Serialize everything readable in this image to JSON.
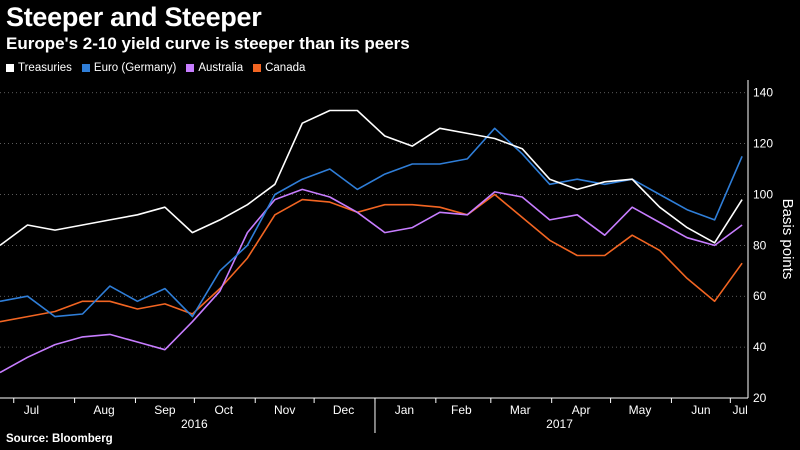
{
  "title": "Steeper and Steeper",
  "subtitle": "Europe's 2-10 yield curve is steeper than its peers",
  "source": "Source: Bloomberg",
  "chart_data": {
    "type": "line",
    "ylabel": "Basis points",
    "ylim": [
      20,
      145
    ],
    "yticks": [
      20,
      40,
      60,
      80,
      100,
      120,
      140
    ],
    "grid": "horizontal dotted",
    "legend": "top-left",
    "months": [
      "Jul",
      "Aug",
      "Sep",
      "Oct",
      "Nov",
      "Dec",
      "Jan",
      "Feb",
      "Mar",
      "Apr",
      "May",
      "Jun",
      "Jul"
    ],
    "years": [
      "2016",
      "2017"
    ],
    "x": [
      "2016-06-24",
      "2016-07-08",
      "2016-07-22",
      "2016-08-05",
      "2016-08-19",
      "2016-09-02",
      "2016-09-16",
      "2016-09-30",
      "2016-10-14",
      "2016-10-28",
      "2016-11-11",
      "2016-11-25",
      "2016-12-09",
      "2016-12-23",
      "2017-01-06",
      "2017-01-20",
      "2017-02-03",
      "2017-02-17",
      "2017-03-03",
      "2017-03-17",
      "2017-03-31",
      "2017-04-14",
      "2017-04-28",
      "2017-05-12",
      "2017-05-26",
      "2017-06-09",
      "2017-06-23",
      "2017-07-07"
    ],
    "series": [
      {
        "name": "Treasuries",
        "color": "#ffffff",
        "values": [
          80,
          88,
          86,
          88,
          90,
          92,
          95,
          85,
          90,
          96,
          104,
          128,
          133,
          133,
          123,
          119,
          126,
          124,
          122,
          118,
          106,
          102,
          105,
          106,
          95,
          87,
          81,
          98
        ]
      },
      {
        "name": "Euro (Germany)",
        "color": "#2f7ed8",
        "values": [
          58,
          60,
          52,
          53,
          64,
          58,
          63,
          52,
          70,
          80,
          100,
          106,
          110,
          102,
          108,
          112,
          112,
          114,
          126,
          116,
          104,
          106,
          104,
          106,
          100,
          94,
          90,
          115
        ]
      },
      {
        "name": "Australia",
        "color": "#c77dff",
        "values": [
          30,
          36,
          41,
          44,
          45,
          42,
          39,
          50,
          62,
          85,
          98,
          102,
          99,
          93,
          85,
          87,
          93,
          92,
          101,
          99,
          90,
          92,
          84,
          95,
          89,
          83,
          80,
          88
        ]
      },
      {
        "name": "Canada",
        "color": "#f26522",
        "values": [
          50,
          52,
          54,
          58,
          58,
          55,
          57,
          53,
          63,
          75,
          92,
          98,
          97,
          93,
          96,
          96,
          95,
          92,
          100,
          91,
          82,
          76,
          76,
          84,
          78,
          67,
          58,
          73
        ]
      }
    ]
  }
}
